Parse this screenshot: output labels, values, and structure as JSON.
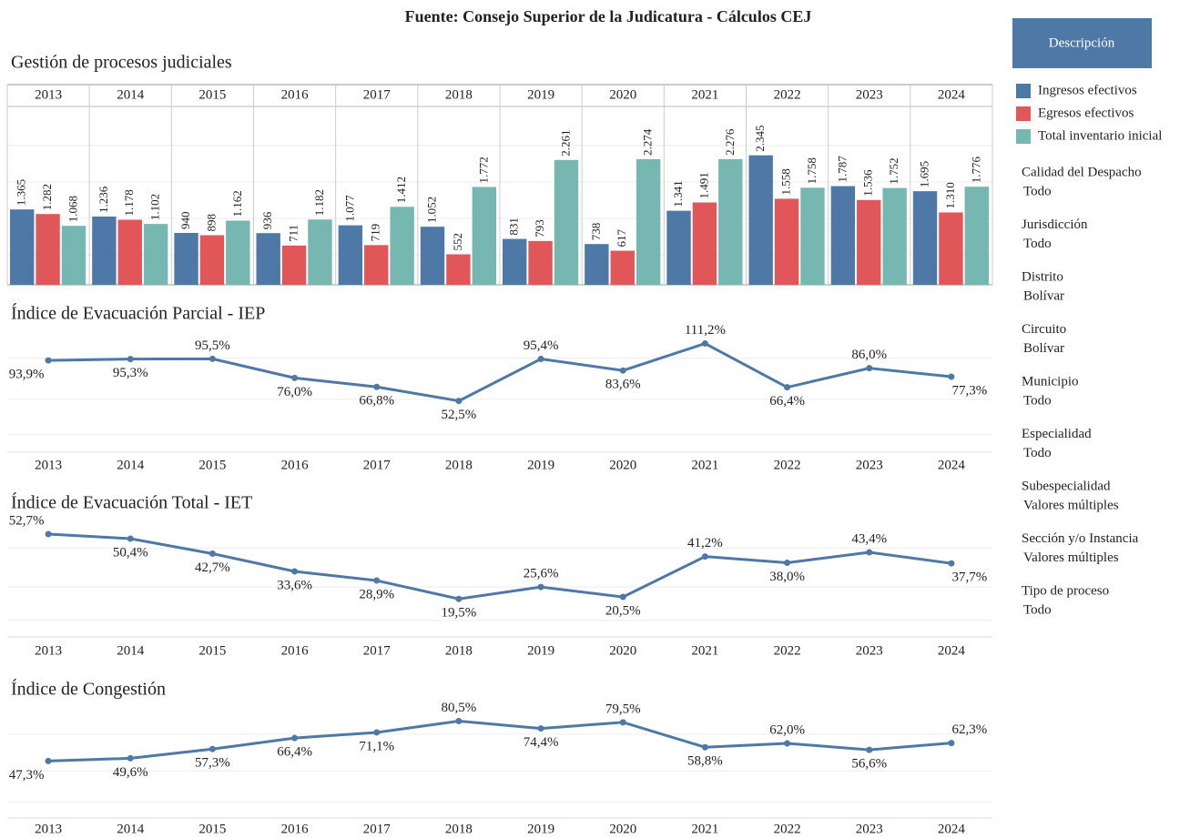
{
  "title": "Fuente: Consejo Superior de la Judicatura - Cálculos CEJ",
  "button": "Descripción",
  "filters": [
    {
      "label": "Calidad del Despacho",
      "value": "Todo"
    },
    {
      "label": "Jurisdicción",
      "value": "Todo"
    },
    {
      "label": "Distrito",
      "value": "Bolívar"
    },
    {
      "label": "Circuito",
      "value": "Bolívar"
    },
    {
      "label": "Municipio",
      "value": "Todo"
    },
    {
      "label": "Especialidad",
      "value": "Todo"
    },
    {
      "label": "Subespecialidad",
      "value": "Valores múltiples"
    },
    {
      "label": "Sección y/o Instancia",
      "value": "Valores múltiples"
    },
    {
      "label": "Tipo de proceso",
      "value": "Todo"
    }
  ],
  "chart_data": [
    {
      "type": "bar",
      "title": "Gestión de procesos judiciales",
      "categories": [
        "2013",
        "2014",
        "2015",
        "2016",
        "2017",
        "2018",
        "2019",
        "2020",
        "2021",
        "2022",
        "2023",
        "2024"
      ],
      "series": [
        {
          "name": "Ingresos efectivos",
          "color": "#4e79a7",
          "values": [
            1365,
            1236,
            940,
            936,
            1077,
            1052,
            831,
            738,
            1341,
            2345,
            1787,
            1695
          ],
          "value_labels": [
            "1.365",
            "1.236",
            "940",
            "936",
            "1.077",
            "1.052",
            "831",
            "738",
            "1.341",
            "2.345",
            "1.787",
            "1.695"
          ]
        },
        {
          "name": "Egresos efectivos",
          "color": "#e15759",
          "values": [
            1282,
            1178,
            898,
            711,
            719,
            552,
            793,
            617,
            1491,
            1558,
            1536,
            1310
          ],
          "value_labels": [
            "1.282",
            "1.178",
            "898",
            "711",
            "719",
            "552",
            "793",
            "617",
            "1.491",
            "1.558",
            "1.536",
            "1.310"
          ]
        },
        {
          "name": "Total inventario inicial",
          "color": "#76b7b2",
          "values": [
            1068,
            1102,
            1162,
            1182,
            1412,
            1772,
            2261,
            2274,
            2276,
            1758,
            1752,
            1776
          ],
          "value_labels": [
            "1.068",
            "1.102",
            "1.162",
            "1.182",
            "1.412",
            "1.772",
            "2.261",
            "2.274",
            "2.276",
            "1.758",
            "1.752",
            "1.776"
          ]
        }
      ]
    },
    {
      "type": "line",
      "title": "Índice de Evacuación Parcial - IEP",
      "color": "#4e79a7",
      "categories": [
        "2013",
        "2014",
        "2015",
        "2016",
        "2017",
        "2018",
        "2019",
        "2020",
        "2021",
        "2022",
        "2023",
        "2024"
      ],
      "values": [
        93.9,
        95.3,
        95.5,
        76.0,
        66.8,
        52.5,
        95.4,
        83.6,
        111.2,
        66.4,
        86.0,
        77.3
      ],
      "value_labels": [
        "93,9%",
        "95,3%",
        "95,5%",
        "76,0%",
        "66,8%",
        "52,5%",
        "95,4%",
        "83,6%",
        "111,2%",
        "66,4%",
        "86,0%",
        "77,3%"
      ]
    },
    {
      "type": "line",
      "title": "Índice de Evacuación Total - IET",
      "color": "#4e79a7",
      "categories": [
        "2013",
        "2014",
        "2015",
        "2016",
        "2017",
        "2018",
        "2019",
        "2020",
        "2021",
        "2022",
        "2023",
        "2024"
      ],
      "values": [
        52.7,
        50.4,
        42.7,
        33.6,
        28.9,
        19.5,
        25.6,
        20.5,
        41.2,
        38.0,
        43.4,
        37.7
      ],
      "value_labels": [
        "52,7%",
        "50,4%",
        "42,7%",
        "33,6%",
        "28,9%",
        "19,5%",
        "25,6%",
        "20,5%",
        "41,2%",
        "38,0%",
        "43,4%",
        "37,7%"
      ]
    },
    {
      "type": "line",
      "title": "Índice de Congestión",
      "color": "#4e79a7",
      "categories": [
        "2013",
        "2014",
        "2015",
        "2016",
        "2017",
        "2018",
        "2019",
        "2020",
        "2021",
        "2022",
        "2023",
        "2024"
      ],
      "values": [
        47.3,
        49.6,
        57.3,
        66.4,
        71.1,
        80.5,
        74.4,
        79.5,
        58.8,
        62.0,
        56.6,
        62.3
      ],
      "value_labels": [
        "47,3%",
        "49,6%",
        "57,3%",
        "66,4%",
        "71,1%",
        "80,5%",
        "74,4%",
        "79,5%",
        "58,8%",
        "62,0%",
        "56,6%",
        "62,3%"
      ]
    }
  ]
}
